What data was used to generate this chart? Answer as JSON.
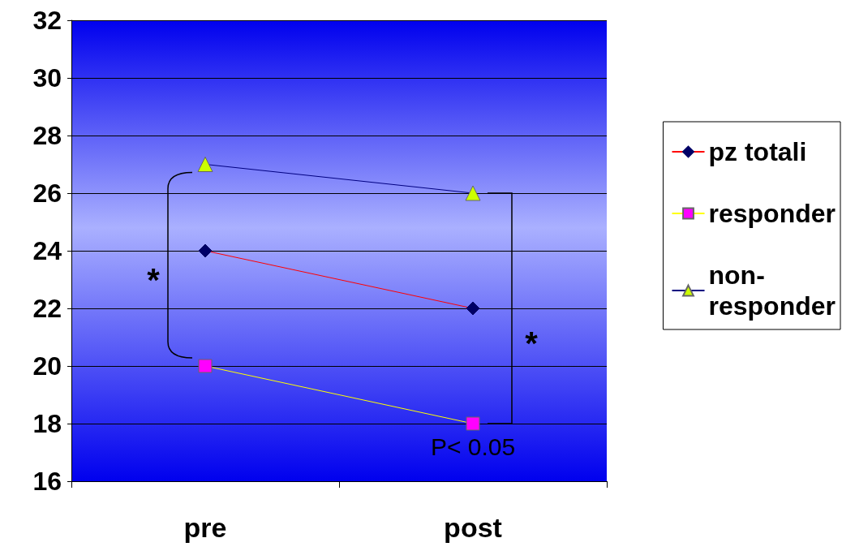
{
  "chart_data": {
    "type": "line",
    "categories": [
      "pre",
      "post"
    ],
    "series": [
      {
        "name": "pz totali",
        "color": "#000066",
        "values": [
          24,
          22
        ],
        "marker": "diamond"
      },
      {
        "name": "responder",
        "color": "#ff00ff",
        "values": [
          20,
          18
        ],
        "marker": "square"
      },
      {
        "name": "non-responder",
        "color": "#ccff00",
        "values": [
          27,
          26
        ],
        "marker": "triangle"
      }
    ],
    "ylim": [
      16,
      32
    ],
    "yticks": [
      16,
      18,
      20,
      22,
      24,
      26,
      28,
      30,
      32
    ],
    "grid": "y",
    "legend": "right",
    "annotations": [
      "*",
      "*",
      "P< 0.05"
    ]
  }
}
